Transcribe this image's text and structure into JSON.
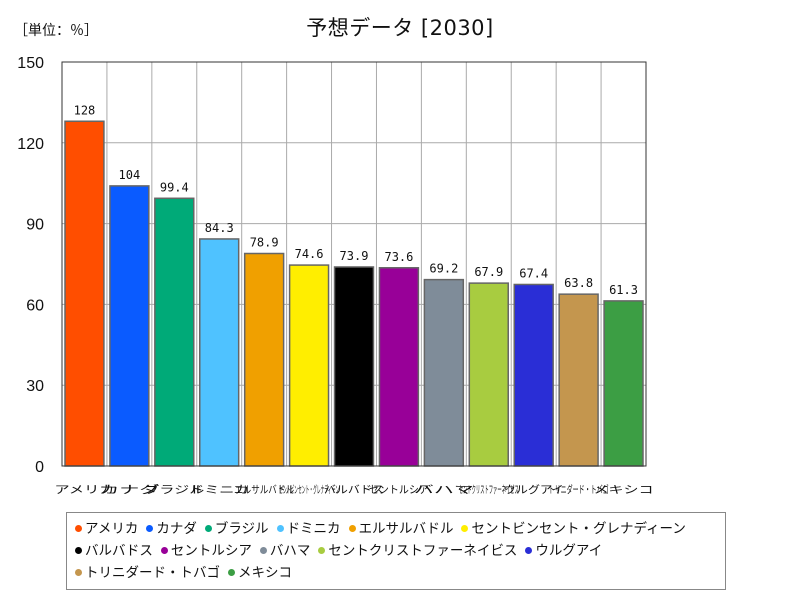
{
  "chart_data": {
    "type": "bar",
    "title": "予想データ [2030]",
    "unit_label": "［単位：％］",
    "ylim": [
      0,
      150
    ],
    "yticks": [
      0,
      30,
      60,
      90,
      120,
      150
    ],
    "grid": true,
    "legend_position": "bottom",
    "categories": [
      "アメリカ",
      "カナダ",
      "ブラジル",
      "ドミニカ",
      "エルサルバドル",
      "セントビンセント・グレナディーン",
      "バルバドス",
      "セントルシア",
      "バハマ",
      "セントクリストファーネイビス",
      "ウルグアイ",
      "トリニダード・トバゴ",
      "メキシコ"
    ],
    "values": [
      128,
      104,
      99.4,
      84.3,
      78.9,
      74.6,
      73.9,
      73.6,
      69.2,
      67.9,
      67.4,
      63.8,
      61.3
    ],
    "value_labels": [
      "128",
      "104",
      "99.4",
      "84.3",
      "78.9",
      "74.6",
      "73.9",
      "73.6",
      "69.2",
      "67.9",
      "67.4",
      "63.8",
      "61.3"
    ],
    "colors": [
      "#ff4e00",
      "#0a5bff",
      "#00aa78",
      "#4fc2ff",
      "#f0a000",
      "#ffee00",
      "#000000",
      "#980098",
      "#7f8c99",
      "#a8cc40",
      "#2a2ed6",
      "#c4964e",
      "#3c9e44"
    ]
  },
  "legend_rows": [
    [
      0,
      1,
      2,
      3,
      4,
      5
    ],
    [
      6,
      7,
      8,
      9,
      10
    ],
    [
      11,
      12
    ]
  ]
}
